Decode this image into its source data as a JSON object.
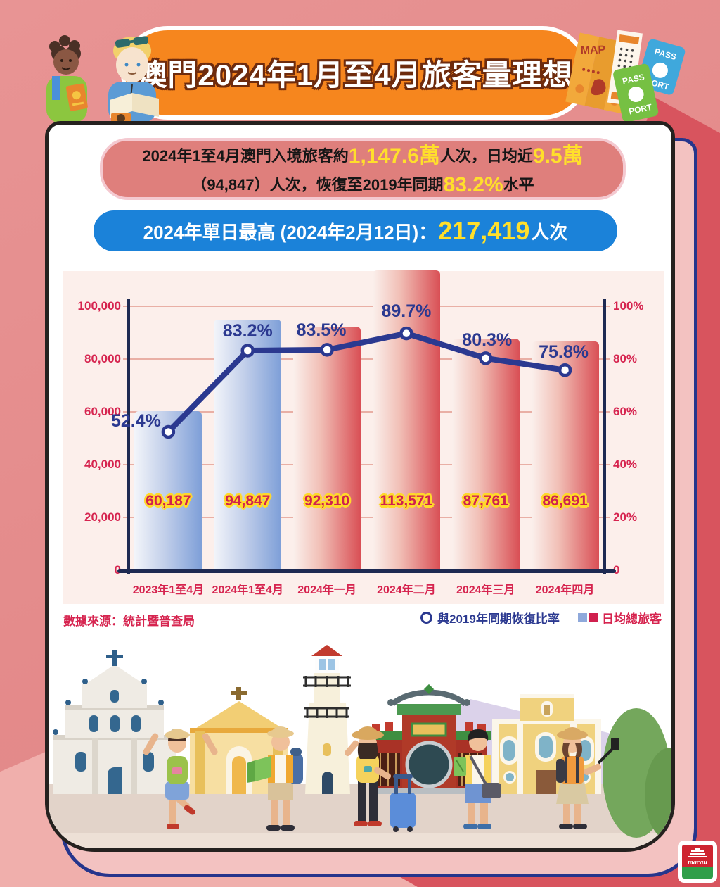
{
  "page": {
    "banner_title": "澳門2024年1月至4月旅客量理想"
  },
  "summary": {
    "part1": "2024年1至4月澳門入境旅客約",
    "highlight1": "1,147.6萬",
    "part2": "人次，日均近",
    "highlight2": "9.5萬",
    "part3": "（94,847）人次，恢復至2019年同期",
    "highlight3": "83.2%",
    "part4": "水平"
  },
  "daily_peak": {
    "label": "2024年單日最高 (2024年2月12日)：",
    "value": "217,419",
    "unit": "人次"
  },
  "chart_data": {
    "type": "bar",
    "combo": "bar+line",
    "categories": [
      "2023年1至4月",
      "2024年1至4月",
      "2024年一月",
      "2024年二月",
      "2024年三月",
      "2024年四月"
    ],
    "series": [
      {
        "name": "日均總旅客",
        "type": "bar",
        "axis": "left",
        "values": [
          60187,
          94847,
          92310,
          113571,
          87761,
          86691
        ],
        "value_labels": [
          "60,187",
          "94,847",
          "92,310",
          "113,571",
          "87,761",
          "86,691"
        ],
        "bar_styles": [
          "blue",
          "blue",
          "red",
          "red",
          "red",
          "red"
        ]
      },
      {
        "name": "與2019年同期恢復比率",
        "type": "line",
        "axis": "right",
        "values": [
          52.4,
          83.2,
          83.5,
          89.7,
          80.3,
          75.8
        ],
        "point_labels": [
          "52.4%",
          "83.2%",
          "83.5%",
          "89.7%",
          "80.3%",
          "75.8%"
        ]
      }
    ],
    "left_axis": {
      "min": 0,
      "max": 100000,
      "ticks": [
        "100,000",
        "80,000",
        "60,000",
        "40,000",
        "20,000",
        "0"
      ]
    },
    "right_axis": {
      "min": 0,
      "max": 100,
      "ticks": [
        "100%",
        "80%",
        "60%",
        "40%",
        "20%",
        "0"
      ]
    },
    "grid": true,
    "legend_position": "bottom-right"
  },
  "legend": {
    "line_label": "與2019年同期恢復比率",
    "bar_label": "日均總旅客"
  },
  "source": "數據來源：統計暨普查局",
  "decor": {
    "map_text": "MAP",
    "passport_green_top": "PASS",
    "passport_green_bottom": "PORT",
    "passport_blue_top": "PASS",
    "passport_blue_bottom": "PORT",
    "logo_text": "macau"
  },
  "colors": {
    "banner_orange": "#F6861E",
    "peak_blue": "#1B82D9",
    "summary_pink": "#DF7F7C",
    "summary_border": "#F4C9D0",
    "yellow": "#FFDF2B",
    "crimson": "#D6244F",
    "navy": "#2B3990",
    "axis_dark": "#1E2A52",
    "bar_blue": "#7E9FD8",
    "bar_red": "#D94F55",
    "panel_pink": "#FCEFEB",
    "grid_pink": "#E9AFA5",
    "legend_blue": "#8FA9DB",
    "legend_red": "#D0204E"
  }
}
